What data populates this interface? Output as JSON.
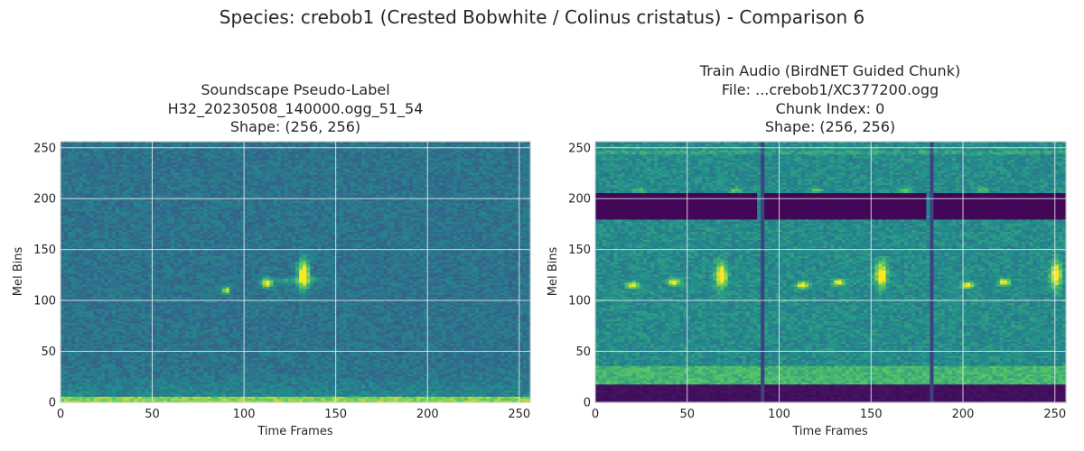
{
  "figure": {
    "title": "Species: crebob1 (Crested Bobwhite / Colinus cristatus) - Comparison 6"
  },
  "chart_data": [
    {
      "type": "heatmap",
      "title_lines": [
        "Soundscape Pseudo-Label",
        "H32_20230508_140000.ogg_51_54",
        "Shape: (256, 256)"
      ],
      "xlabel": "Time Frames",
      "ylabel": "Mel Bins",
      "xlim": [
        0,
        256
      ],
      "ylim": [
        0,
        256
      ],
      "xticks": [
        0,
        50,
        100,
        150,
        200,
        250
      ],
      "yticks": [
        0,
        50,
        100,
        150,
        200,
        250
      ],
      "grid": true,
      "colormap": "viridis",
      "shape": [
        256,
        256
      ]
    },
    {
      "type": "heatmap",
      "title_lines": [
        "Train Audio (BirdNET Guided Chunk)",
        "File: ...crebob1/XC377200.ogg",
        "Chunk Index: 0",
        "Shape: (256, 256)"
      ],
      "xlabel": "Time Frames",
      "ylabel": "Mel Bins",
      "xlim": [
        0,
        256
      ],
      "ylim": [
        0,
        256
      ],
      "xticks": [
        0,
        50,
        100,
        150,
        200,
        250
      ],
      "yticks": [
        0,
        50,
        100,
        150,
        200,
        250
      ],
      "grid": true,
      "colormap": "viridis",
      "shape": [
        256,
        256
      ]
    }
  ],
  "colors": {
    "viridis_dark": "#440154",
    "viridis_blue": "#31688e",
    "viridis_teal": "#21918c",
    "viridis_green": "#35b779",
    "viridis_yellow": "#fde725",
    "grid": "#ffffff"
  }
}
